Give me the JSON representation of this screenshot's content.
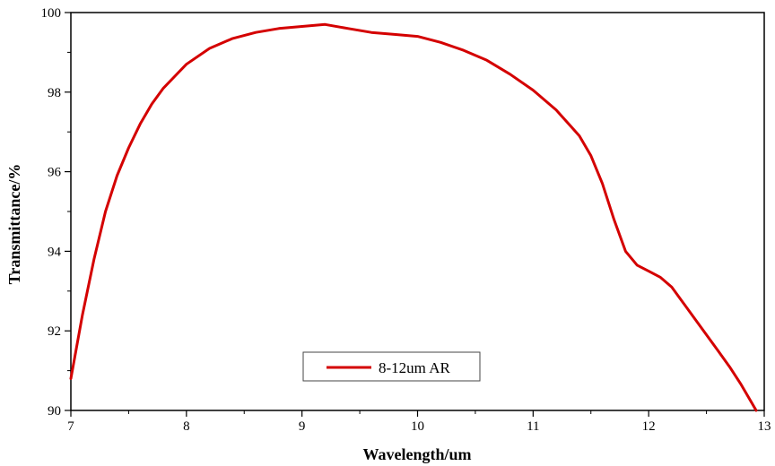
{
  "chart_data": {
    "type": "line",
    "xlabel": "Wavelength/um",
    "ylabel": "Transmittance/%",
    "xlim": [
      7,
      13
    ],
    "ylim": [
      90,
      100
    ],
    "x_ticks": [
      "7",
      "8",
      "9",
      "10",
      "11",
      "12",
      "13"
    ],
    "y_ticks": [
      "90",
      "92",
      "94",
      "96",
      "98",
      "100"
    ],
    "grid": false,
    "legend_position": "bottom-center",
    "series": [
      {
        "name": "8-12um AR",
        "color": "#d40000",
        "x": [
          7.0,
          7.1,
          7.2,
          7.3,
          7.4,
          7.5,
          7.6,
          7.7,
          7.8,
          7.9,
          8.0,
          8.2,
          8.4,
          8.6,
          8.8,
          9.0,
          9.2,
          9.4,
          9.6,
          9.8,
          10.0,
          10.2,
          10.4,
          10.6,
          10.8,
          11.0,
          11.2,
          11.4,
          11.5,
          11.6,
          11.7,
          11.8,
          11.9,
          12.0,
          12.1,
          12.2,
          12.3,
          12.4,
          12.5,
          12.6,
          12.7,
          12.8,
          12.9,
          12.93
        ],
        "y": [
          90.8,
          92.4,
          93.8,
          95.0,
          95.9,
          96.6,
          97.2,
          97.7,
          98.1,
          98.4,
          98.7,
          99.1,
          99.35,
          99.5,
          99.6,
          99.65,
          99.7,
          99.6,
          99.5,
          99.45,
          99.4,
          99.25,
          99.05,
          98.8,
          98.45,
          98.05,
          97.55,
          96.9,
          96.4,
          95.7,
          94.8,
          94.0,
          93.65,
          93.5,
          93.35,
          93.1,
          92.7,
          92.3,
          91.9,
          91.5,
          91.1,
          90.65,
          90.15,
          90.0
        ]
      }
    ]
  }
}
